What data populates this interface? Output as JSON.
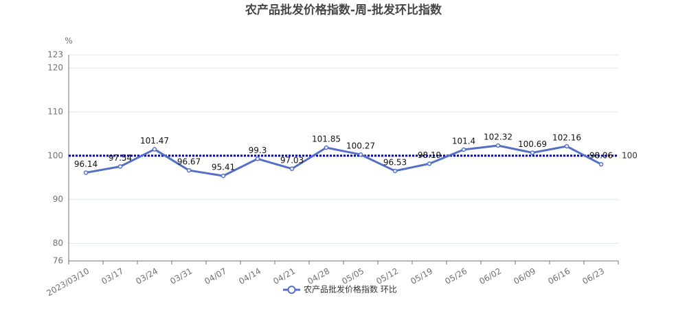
{
  "chart_data": {
    "type": "line",
    "title": "农产品批发价格指数-周-批发环比指数",
    "y_unit": "%",
    "categories": [
      "2023/03/10",
      "03/17",
      "03/24",
      "03/31",
      "04/07",
      "04/14",
      "04/21",
      "04/28",
      "05/05",
      "05/12",
      "05/19",
      "05/26",
      "06/02",
      "06/09",
      "06/16",
      "06/23"
    ],
    "series": [
      {
        "name": "农产品批发价格指数 环比",
        "color": "#5470c6",
        "values": [
          96.14,
          97.54,
          101.47,
          96.67,
          95.41,
          99.3,
          97.03,
          101.85,
          100.27,
          96.53,
          98.19,
          101.4,
          102.32,
          100.69,
          102.16,
          98.06
        ]
      }
    ],
    "reference_line": 100,
    "reference_color": "#0000cc",
    "ylim": [
      76,
      123
    ],
    "yticks": [
      76,
      80,
      90,
      100,
      110,
      120,
      123
    ],
    "grid": true
  }
}
